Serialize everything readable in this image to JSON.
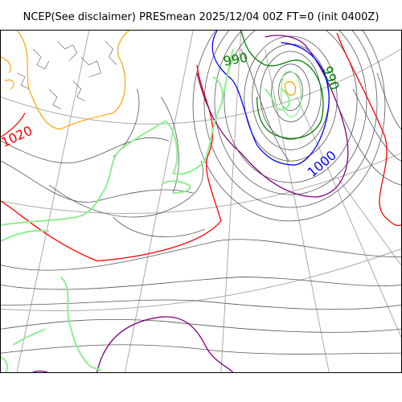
{
  "title": "NCEP(See disclaimer) PRESmean 2025/12/04 00Z FT=0 (init 0400Z)",
  "contour_labels": {
    "label_990_upper": "990",
    "label_990_right": "990",
    "label_1000": "1000",
    "label_1020": "1020"
  },
  "colors": {
    "isobar_thin": "#555555",
    "isobar_1020": "#ff0000",
    "isobar_1010": "#800080",
    "isobar_1000": "#0000ff",
    "isobar_990": "#008000",
    "isobar_980": "#90ee90",
    "isobar_high": "#ffa500",
    "coastline": "#90ee90",
    "graticule": "#aaaaaa"
  }
}
